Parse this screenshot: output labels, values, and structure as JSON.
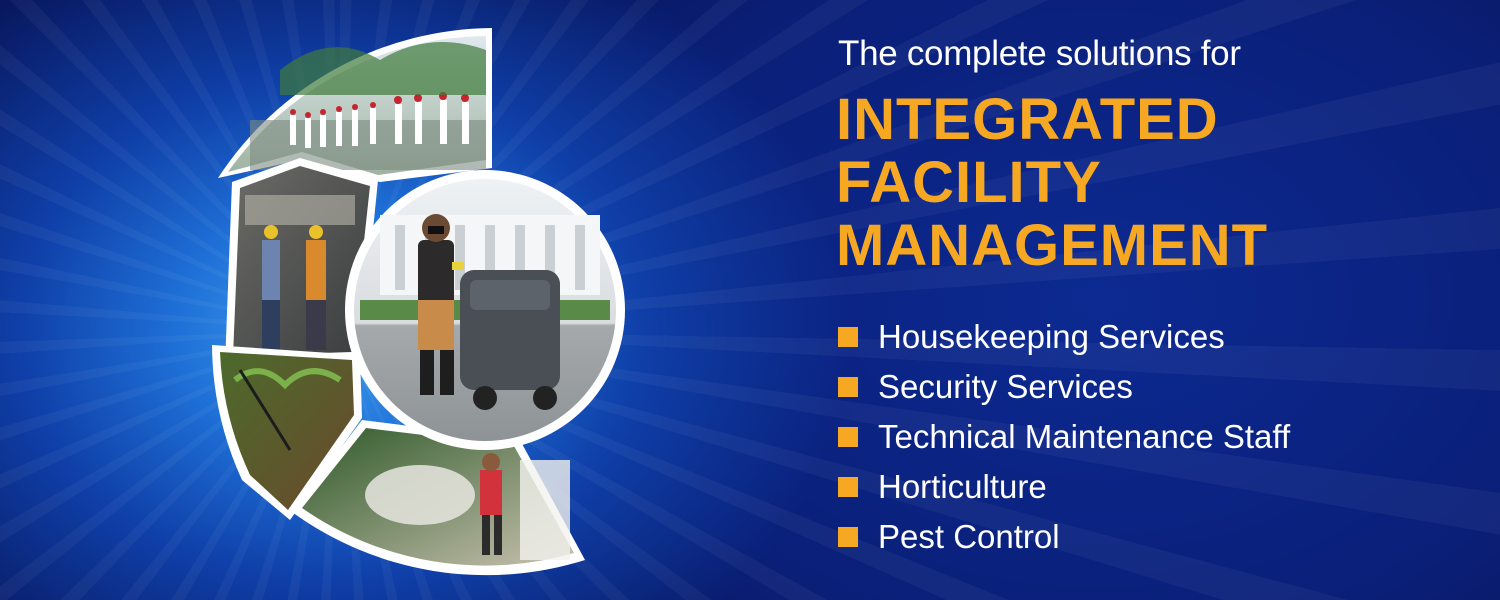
{
  "banner": {
    "intro": "The complete solutions for",
    "headline_lines": [
      "INTEGRATED",
      "FACILITY",
      "MANAGEMENT"
    ],
    "services": [
      "Housekeeping Services",
      "Security Services",
      "Technical Maintenance Staff",
      "Horticulture",
      "Pest Control"
    ]
  },
  "colors": {
    "accent": "#f7a823",
    "text": "#ffffff",
    "background": "#0a1f78"
  },
  "photos": [
    {
      "name": "security-guards-parade-photo"
    },
    {
      "name": "technical-maintenance-workers-photo"
    },
    {
      "name": "housekeeping-floor-scrubber-photo"
    },
    {
      "name": "horticulture-garden-photo"
    },
    {
      "name": "pest-control-fogging-photo"
    }
  ]
}
